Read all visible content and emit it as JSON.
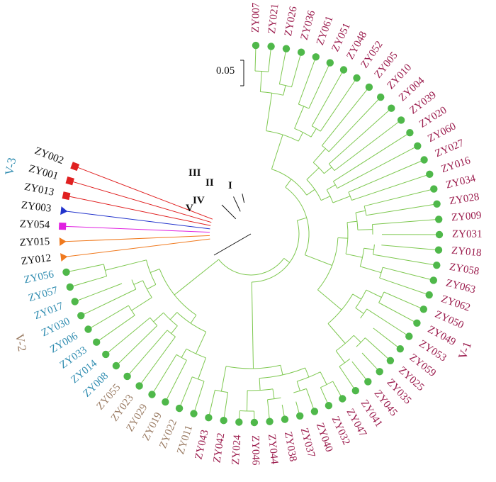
{
  "scale_bar": {
    "label": "0.05"
  },
  "colors": {
    "V-1": "#9b1c4d",
    "V-2": "#9a7b63",
    "V-3": "#2f8cb0",
    "other": "#111111",
    "branch_green": "#7ec850",
    "node_green": "#4fb84a",
    "branch_I": "#e02020",
    "branch_II": "#2233cc",
    "branch_III": "#e020e0",
    "branch_IV": "#f07a1f"
  },
  "leaves": [
    {
      "label": "ZY007",
      "group": "V-1",
      "marker": "circle"
    },
    {
      "label": "ZY021",
      "group": "V-1",
      "marker": "circle"
    },
    {
      "label": "ZY026",
      "group": "V-1",
      "marker": "circle"
    },
    {
      "label": "ZY036",
      "group": "V-1",
      "marker": "circle"
    },
    {
      "label": "ZY061",
      "group": "V-1",
      "marker": "circle"
    },
    {
      "label": "ZY051",
      "group": "V-1",
      "marker": "circle"
    },
    {
      "label": "ZY048",
      "group": "V-1",
      "marker": "circle"
    },
    {
      "label": "ZY052",
      "group": "V-1",
      "marker": "circle"
    },
    {
      "label": "ZY005",
      "group": "V-1",
      "marker": "circle"
    },
    {
      "label": "ZY010",
      "group": "V-1",
      "marker": "circle"
    },
    {
      "label": "ZY004",
      "group": "V-1",
      "marker": "circle"
    },
    {
      "label": "ZY039",
      "group": "V-1",
      "marker": "circle"
    },
    {
      "label": "ZY020",
      "group": "V-1",
      "marker": "circle"
    },
    {
      "label": "ZY060",
      "group": "V-1",
      "marker": "circle"
    },
    {
      "label": "ZY027",
      "group": "V-1",
      "marker": "circle"
    },
    {
      "label": "ZY016",
      "group": "V-1",
      "marker": "circle"
    },
    {
      "label": "ZY034",
      "group": "V-1",
      "marker": "circle"
    },
    {
      "label": "ZY028",
      "group": "V-1",
      "marker": "circle"
    },
    {
      "label": "ZY009",
      "group": "V-1",
      "marker": "circle"
    },
    {
      "label": "ZY031",
      "group": "V-1",
      "marker": "circle"
    },
    {
      "label": "ZY018",
      "group": "V-1",
      "marker": "circle"
    },
    {
      "label": "ZY058",
      "group": "V-1",
      "marker": "circle"
    },
    {
      "label": "ZY063",
      "group": "V-1",
      "marker": "circle"
    },
    {
      "label": "ZY062",
      "group": "V-1",
      "marker": "circle"
    },
    {
      "label": "ZY050",
      "group": "V-1",
      "marker": "circle"
    },
    {
      "label": "ZY049",
      "group": "V-1",
      "marker": "circle"
    },
    {
      "label": "ZY053",
      "group": "V-1",
      "marker": "circle"
    },
    {
      "label": "ZY059",
      "group": "V-1",
      "marker": "circle"
    },
    {
      "label": "ZY025",
      "group": "V-1",
      "marker": "circle"
    },
    {
      "label": "ZY035",
      "group": "V-1",
      "marker": "circle"
    },
    {
      "label": "ZY045",
      "group": "V-1",
      "marker": "circle"
    },
    {
      "label": "ZY041",
      "group": "V-1",
      "marker": "circle"
    },
    {
      "label": "ZY047",
      "group": "V-1",
      "marker": "circle"
    },
    {
      "label": "ZY032",
      "group": "V-1",
      "marker": "circle"
    },
    {
      "label": "ZY040",
      "group": "V-1",
      "marker": "circle"
    },
    {
      "label": "ZY037",
      "group": "V-1",
      "marker": "circle"
    },
    {
      "label": "ZY038",
      "group": "V-1",
      "marker": "circle"
    },
    {
      "label": "ZY044",
      "group": "V-1",
      "marker": "circle"
    },
    {
      "label": "ZY046",
      "group": "V-1",
      "marker": "circle"
    },
    {
      "label": "ZY024",
      "group": "V-1",
      "marker": "circle"
    },
    {
      "label": "ZY042",
      "group": "V-1",
      "marker": "circle"
    },
    {
      "label": "ZY043",
      "group": "V-1",
      "marker": "circle"
    },
    {
      "label": "ZY011",
      "group": "V-2",
      "marker": "circle"
    },
    {
      "label": "ZY022",
      "group": "V-2",
      "marker": "circle"
    },
    {
      "label": "ZY019",
      "group": "V-2",
      "marker": "circle"
    },
    {
      "label": "ZY029",
      "group": "V-2",
      "marker": "circle"
    },
    {
      "label": "ZY023",
      "group": "V-2",
      "marker": "circle"
    },
    {
      "label": "ZY055",
      "group": "V-2",
      "marker": "circle"
    },
    {
      "label": "ZY008",
      "group": "V-3",
      "marker": "circle"
    },
    {
      "label": "ZY014",
      "group": "V-3",
      "marker": "circle"
    },
    {
      "label": "ZY033",
      "group": "V-3",
      "marker": "circle"
    },
    {
      "label": "ZY006",
      "group": "V-3",
      "marker": "circle"
    },
    {
      "label": "ZY030",
      "group": "V-3",
      "marker": "circle"
    },
    {
      "label": "ZY017",
      "group": "V-3",
      "marker": "circle"
    },
    {
      "label": "ZY057",
      "group": "V-3",
      "marker": "circle"
    },
    {
      "label": "ZY056",
      "group": "V-3",
      "marker": "circle"
    },
    {
      "label": "ZY012",
      "group": "other",
      "marker": "triangle-orange"
    },
    {
      "label": "ZY015",
      "group": "other",
      "marker": "triangle-orange"
    },
    {
      "label": "ZY054",
      "group": "other",
      "marker": "square-magenta"
    },
    {
      "label": "ZY003",
      "group": "other",
      "marker": "triangle-blue"
    },
    {
      "label": "ZY013",
      "group": "other",
      "marker": "square-red"
    },
    {
      "label": "ZY001",
      "group": "other",
      "marker": "square-red"
    },
    {
      "label": "ZY002",
      "group": "other",
      "marker": "square-red"
    }
  ],
  "clade_labels": {
    "I": "I",
    "II": "II",
    "III": "III",
    "IV": "IV",
    "V": "V"
  },
  "group_labels": {
    "v1": "V-1",
    "v2": "V-2",
    "v3": "V-3"
  }
}
